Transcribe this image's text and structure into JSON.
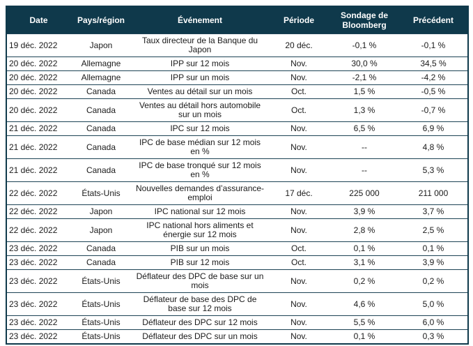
{
  "table": {
    "columns": [
      "Date",
      "Pays/région",
      "Événement",
      "Période",
      "Sondage de Bloomberg",
      "Précédent"
    ],
    "rows": [
      {
        "date": "19 déc. 2022",
        "region": "Japon",
        "event": "Taux directeur de la Banque du Japon",
        "period": "20 déc.",
        "survey": "-0,1 %",
        "previous": "-0,1 %"
      },
      {
        "date": "20 déc. 2022",
        "region": "Allemagne",
        "event": "IPP sur 12 mois",
        "period": "Nov.",
        "survey": "30,0 %",
        "previous": "34,5 %"
      },
      {
        "date": "20 déc. 2022",
        "region": "Allemagne",
        "event": "IPP sur un mois",
        "period": "Nov.",
        "survey": "-2,1 %",
        "previous": "-4,2 %"
      },
      {
        "date": "20 déc. 2022",
        "region": "Canada",
        "event": "Ventes au détail sur un mois",
        "period": "Oct.",
        "survey": "1,5 %",
        "previous": "-0,5 %"
      },
      {
        "date": "20 déc. 2022",
        "region": "Canada",
        "event": "Ventes au détail hors automobile sur un mois",
        "period": "Oct.",
        "survey": "1,3 %",
        "previous": "-0,7 %"
      },
      {
        "date": "21 déc. 2022",
        "region": "Canada",
        "event": "IPC sur 12 mois",
        "period": "Nov.",
        "survey": "6,5 %",
        "previous": "6,9 %"
      },
      {
        "date": "21 déc. 2022",
        "region": "Canada",
        "event": "IPC de base médian sur 12 mois en %",
        "period": "Nov.",
        "survey": "--",
        "previous": "4,8 %"
      },
      {
        "date": "21 déc. 2022",
        "region": "Canada",
        "event": "IPC de base tronqué sur 12 mois en %",
        "period": "Nov.",
        "survey": "--",
        "previous": "5,3 %"
      },
      {
        "date": "22 déc. 2022",
        "region": "États-Unis",
        "event": "Nouvelles demandes d’assurance-emploi",
        "period": "17 déc.",
        "survey": "225 000",
        "previous": "211 000"
      },
      {
        "date": "22 déc. 2022",
        "region": "Japon",
        "event": "IPC national sur 12 mois",
        "period": "Nov.",
        "survey": "3,9 %",
        "previous": "3,7 %"
      },
      {
        "date": "22 déc. 2022",
        "region": "Japon",
        "event": "IPC national hors aliments et énergie sur 12 mois",
        "period": "Nov.",
        "survey": "2,8 %",
        "previous": "2,5 %"
      },
      {
        "date": "23 déc. 2022",
        "region": "Canada",
        "event": "PIB sur un mois",
        "period": "Oct.",
        "survey": "0,1 %",
        "previous": "0,1 %"
      },
      {
        "date": "23 déc. 2022",
        "region": "Canada",
        "event": "PIB sur 12 mois",
        "period": "Oct.",
        "survey": "3,1 %",
        "previous": "3,9 %"
      },
      {
        "date": "23 déc. 2022",
        "region": "États-Unis",
        "event": "Déflateur des DPC de base sur un mois",
        "period": "Nov.",
        "survey": "0,2 %",
        "previous": "0,2 %"
      },
      {
        "date": "23 déc. 2022",
        "region": "États-Unis",
        "event": "Déflateur de base des DPC de base sur 12 mois",
        "period": "Nov.",
        "survey": "4,6 %",
        "previous": "5,0 %"
      },
      {
        "date": "23 déc. 2022",
        "region": "États-Unis",
        "event": "Déflateur des DPC sur 12 mois",
        "period": "Nov.",
        "survey": "5,5 %",
        "previous": "6,0 %"
      },
      {
        "date": "23 déc. 2022",
        "region": "États-Unis",
        "event": "Déflateur des DPC sur un mois",
        "period": "Nov.",
        "survey": "0,1 %",
        "previous": "0,3 %"
      }
    ]
  },
  "colors": {
    "header_bg": "#0f394b",
    "header_text": "#ffffff",
    "row_border": "#1c4254",
    "body_text": "#1a1a1a"
  }
}
